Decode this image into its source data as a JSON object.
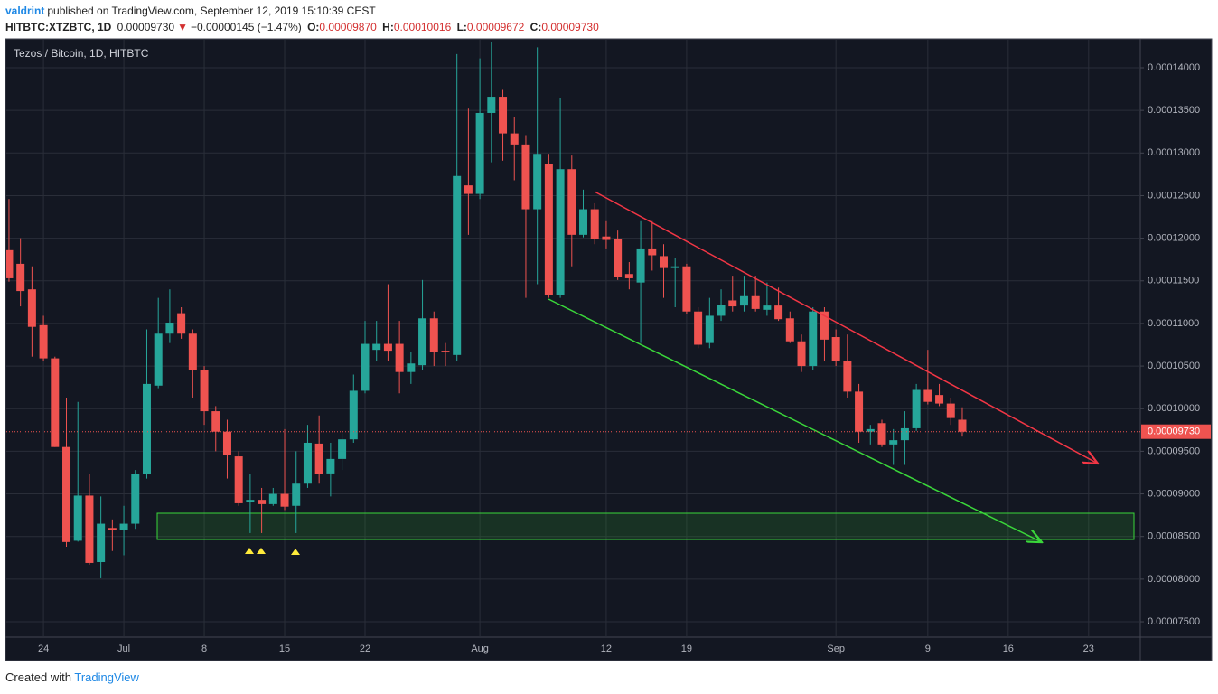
{
  "header": {
    "author": "valdrint",
    "published": "published on TradingView.com, September 12, 2019 15:10:39 CEST",
    "symbol": "HITBTC:XTZBTC, 1D",
    "last": "0.00009730",
    "arrow": "▼",
    "change": "−0.00000145 (−1.47%)",
    "ohlc": [
      {
        "label": "O:",
        "value": "0.00009870"
      },
      {
        "label": "H:",
        "value": "0.00010016"
      },
      {
        "label": "L:",
        "value": "0.00009672"
      },
      {
        "label": "C:",
        "value": "0.00009730"
      }
    ]
  },
  "chart_data": {
    "type": "candlestick",
    "legend_title": "Tezos / Bitcoin, 1D, HITBTC",
    "categories": [
      null,
      null,
      null,
      "24",
      null,
      null,
      null,
      null,
      null,
      null,
      "Jul",
      null,
      null,
      null,
      null,
      null,
      null,
      "8",
      null,
      null,
      null,
      null,
      null,
      null,
      "15",
      null,
      null,
      null,
      null,
      null,
      null,
      "22",
      null,
      null,
      null,
      null,
      null,
      null,
      null,
      null,
      null,
      "Aug",
      null,
      null,
      null,
      null,
      null,
      null,
      null,
      null,
      null,
      null,
      "12",
      null,
      null,
      null,
      null,
      null,
      null,
      "19",
      null,
      null,
      null,
      null,
      null,
      null,
      null,
      null,
      null,
      null,
      null,
      null,
      "Sep",
      null,
      null,
      null,
      null,
      null,
      null,
      null,
      "9",
      null,
      null,
      null,
      null,
      null,
      null,
      "16",
      null,
      null,
      null,
      null,
      null,
      null,
      "23",
      null,
      null,
      null,
      null
    ],
    "series": [
      {
        "up_color": "#26a69a",
        "down_color": "#ef5350",
        "open": [
          0.0001186,
          0.000117,
          0.000114,
          0.0001098,
          0.0001059,
          9.55e-05,
          8.45e-05,
          8.98e-05,
          8.2e-05,
          8.6e-05,
          8.58e-05,
          8.65e-05,
          9.23e-05,
          0.0001027,
          0.0001088,
          0.0001112,
          0.0001088,
          0.0001045,
          9.97e-05,
          9.73e-05,
          9.44e-05,
          8.9e-05,
          8.93e-05,
          8.88e-05,
          9e-05,
          8.86e-05,
          9.12e-05,
          9.59e-05,
          9.24e-05,
          9.41e-05,
          9.64e-05,
          0.0001021,
          0.0001069,
          0.0001076,
          0.0001076,
          0.0001043,
          0.0001051,
          0.0001106,
          0.0001068,
          0.0001063,
          0.0001262,
          0.0001252,
          0.0001347,
          0.0001366,
          0.0001323,
          0.000131,
          0.0001234,
          0.0001287,
          0.0001133,
          0.0001281,
          0.0001204,
          0.0001234,
          0.0001202,
          0.0001199,
          0.0001158,
          0.0001148,
          0.0001188,
          0.0001179,
          0.0001165,
          0.0001167,
          0.0001114,
          0.0001077,
          0.0001109,
          0.0001127,
          0.0001121,
          0.0001132,
          0.0001116,
          0.0001121,
          0.0001106,
          0.0001079,
          0.000105,
          0.0001114,
          0.0001084,
          0.0001056,
          0.000102,
          9.73e-05,
          9.83e-05,
          9.58e-05,
          9.63e-05,
          9.77e-05,
          0.0001022,
          0.0001016,
          0.0001006,
          9.87e-05,
          null,
          null,
          null,
          null,
          null,
          null,
          null,
          null,
          null,
          null,
          null,
          null,
          null,
          null,
          null
        ],
        "high": [
          0.0001246,
          0.00012,
          0.0001167,
          0.0001109,
          0.0001061,
          0.0001013,
          0.0001008,
          9.23e-05,
          8.97e-05,
          8.7e-05,
          8.86e-05,
          9.28e-05,
          0.0001093,
          0.000113,
          0.000114,
          0.0001119,
          0.0001093,
          0.000105,
          0.0001003,
          9.87e-05,
          9.5e-05,
          9.23e-05,
          9.07e-05,
          9.07e-05,
          9.76e-05,
          9.5e-05,
          9.81e-05,
          9.92e-05,
          9.6e-05,
          9.71e-05,
          0.000104,
          0.0001103,
          0.0001103,
          0.0001146,
          0.0001103,
          0.0001066,
          0.0001151,
          0.0001114,
          0.0001077,
          0.0001416,
          0.0001352,
          0.0001411,
          0.000143,
          0.0001374,
          0.0001342,
          0.0001321,
          0.0001424,
          0.0001299,
          0.0001365,
          0.0001297,
          0.0001257,
          0.0001241,
          0.000122,
          0.0001209,
          0.0001172,
          0.000122,
          0.000122,
          0.0001193,
          0.0001177,
          0.000117,
          0.0001119,
          0.000113,
          0.000114,
          0.0001156,
          0.0001156,
          0.0001156,
          0.0001148,
          0.0001142,
          0.0001114,
          0.0001087,
          0.0001119,
          0.0001119,
          0.0001093,
          0.0001087,
          0.0001029,
          9.81e-05,
          9.87e-05,
          9.76e-05,
          9.97e-05,
          0.0001029,
          0.0001069,
          0.0001029,
          0.0001013,
          0.00010016,
          null,
          null,
          null,
          null,
          null,
          null,
          null,
          null,
          null,
          null,
          null,
          null,
          null,
          null,
          null
        ],
        "low": [
          0.0001149,
          0.000112,
          0.0001061,
          0.0001056,
          9.55e-05,
          8.38e-05,
          8.44e-05,
          8.17e-05,
          8.01e-05,
          8.33e-05,
          8.28e-05,
          8.59e-05,
          9.18e-05,
          0.0001024,
          0.0001077,
          0.0001082,
          0.0001013,
          9.81e-05,
          9.5e-05,
          9.18e-05,
          8.86e-05,
          8.54e-05,
          8.54e-05,
          8.86e-05,
          8.81e-05,
          8.54e-05,
          9.07e-05,
          9.12e-05,
          8.97e-05,
          9.28e-05,
          9.6e-05,
          0.0001018,
          0.0001056,
          0.0001056,
          0.0001018,
          0.0001029,
          0.0001045,
          0.000105,
          0.000105,
          0.0001056,
          0.0001204,
          0.0001246,
          0.0001289,
          0.0001291,
          0.0001268,
          0.000113,
          0.0001146,
          0.000113,
          0.000113,
          0.0001167,
          0.0001201,
          0.0001193,
          0.0001188,
          0.0001151,
          0.000114,
          0.0001077,
          0.0001162,
          0.000113,
          0.0001119,
          0.0001111,
          0.0001071,
          0.0001071,
          0.0001103,
          0.0001114,
          0.0001114,
          0.0001114,
          0.0001109,
          0.0001103,
          0.0001077,
          0.0001043,
          0.0001045,
          0.0001056,
          0.000105,
          0.0001013,
          9.6e-05,
          9.58e-05,
          9.55e-05,
          9.34e-05,
          9.34e-05,
          9.74e-05,
          0.0001005,
          0.0001003,
          9.81e-05,
          9.672e-05,
          null,
          null,
          null,
          null,
          null,
          null,
          null,
          null,
          null,
          null,
          null,
          null,
          null,
          null,
          null
        ],
        "close": [
          0.0001153,
          0.0001138,
          0.0001096,
          0.0001059,
          9.55e-05,
          8.435e-05,
          8.98e-05,
          8.19e-05,
          8.65e-05,
          8.58e-05,
          8.65e-05,
          9.23e-05,
          0.0001029,
          0.0001088,
          0.0001101,
          0.0001088,
          0.0001045,
          9.97e-05,
          9.73e-05,
          9.46e-05,
          8.89e-05,
          8.93e-05,
          8.88e-05,
          9e-05,
          8.85e-05,
          9.12e-05,
          9.6e-05,
          9.23e-05,
          9.41e-05,
          9.64e-05,
          0.0001021,
          0.0001076,
          0.0001076,
          0.0001068,
          0.0001043,
          0.0001053,
          0.0001106,
          0.0001066,
          0.0001066,
          0.0001273,
          0.0001252,
          0.0001347,
          0.0001366,
          0.0001323,
          0.000131,
          0.0001234,
          0.0001299,
          0.0001133,
          0.0001281,
          0.0001204,
          0.0001234,
          0.0001199,
          0.0001198,
          0.0001155,
          0.0001153,
          0.0001188,
          0.000118,
          0.0001165,
          0.0001167,
          0.0001114,
          0.0001075,
          0.0001109,
          0.0001122,
          0.000112,
          0.0001132,
          0.0001117,
          0.0001121,
          0.0001105,
          0.0001079,
          0.000105,
          0.0001114,
          0.0001081,
          0.0001056,
          0.000102,
          9.73e-05,
          9.76e-05,
          9.58e-05,
          9.63e-05,
          9.77e-05,
          0.0001022,
          0.0001008,
          0.0001006,
          9.89e-05,
          9.73e-05,
          null,
          null,
          null,
          null,
          null,
          null,
          null,
          null,
          null,
          null,
          null,
          null,
          null,
          null,
          null
        ]
      }
    ],
    "last_price": {
      "value": 9.73e-05,
      "label": "0.00009730"
    },
    "ylim": [
      7.32e-05,
      0.00014318
    ],
    "yticks": [
      {
        "value": 7.5e-05,
        "label": "0.00007500"
      },
      {
        "value": 8e-05,
        "label": "0.00008000"
      },
      {
        "value": 8.5e-05,
        "label": "0.00008500"
      },
      {
        "value": 9e-05,
        "label": "0.00009000"
      },
      {
        "value": 9.5e-05,
        "label": "0.00009500"
      },
      {
        "value": 0.0001,
        "label": "0.00010000"
      },
      {
        "value": 0.000105,
        "label": "0.00010500"
      },
      {
        "value": 0.00011,
        "label": "0.00011000"
      },
      {
        "value": 0.000115,
        "label": "0.00011500"
      },
      {
        "value": 0.00012,
        "label": "0.00012000"
      },
      {
        "value": 0.000125,
        "label": "0.00012500"
      },
      {
        "value": 0.00013,
        "label": "0.00013000"
      },
      {
        "value": 0.000135,
        "label": "0.00013500"
      },
      {
        "value": 0.00014,
        "label": "0.00014000"
      }
    ],
    "grid": true
  },
  "footer": {
    "text": "Created with",
    "brand": "TradingView"
  }
}
